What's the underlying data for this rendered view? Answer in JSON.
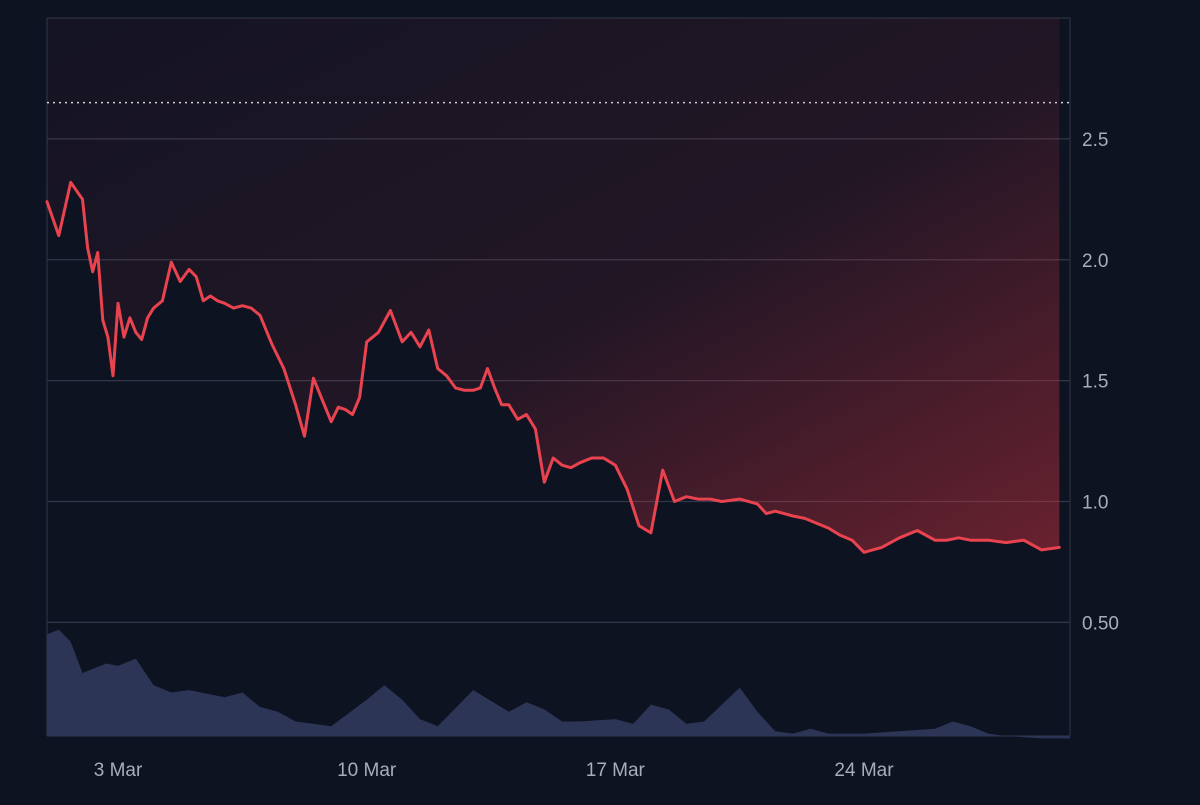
{
  "chart_data": {
    "type": "line",
    "x_ticks": [
      "3 Mar",
      "10 Mar",
      "17 Mar",
      "24 Mar"
    ],
    "y_ticks": [
      "0.50",
      "1.0",
      "1.5",
      "2.0",
      "2.5"
    ],
    "xlim": [
      "1 Mar",
      "29 Mar"
    ],
    "ylim": [
      0.03,
      3.0
    ],
    "grid": true,
    "reference_line": {
      "value": 2.65,
      "style": "dotted"
    },
    "colors": {
      "background": "#0e1322",
      "price_line": "#e8434f",
      "area_fill_top": "#d8333f",
      "volume_fill": "#2c3556",
      "grid": "#313749",
      "tick_text": "#a8adb9",
      "reference_line": "#d4d7de"
    },
    "series": [
      {
        "type": "line",
        "x": [
          "1 Mar",
          "1 Mar",
          "1 Mar",
          "2 Mar",
          "2 Mar",
          "2 Mar",
          "2 Mar",
          "2 Mar",
          "2 Mar",
          "2 Mar",
          "3 Mar",
          "3 Mar",
          "3 Mar",
          "3 Mar",
          "3 Mar",
          "3 Mar",
          "4 Mar",
          "4 Mar",
          "4 Mar",
          "4 Mar",
          "5 Mar",
          "5 Mar",
          "5 Mar",
          "5 Mar",
          "5 Mar",
          "6 Mar",
          "6 Mar",
          "6 Mar",
          "6 Mar",
          "7 Mar",
          "7 Mar",
          "7 Mar",
          "8 Mar",
          "8 Mar",
          "8 Mar",
          "8 Mar",
          "9 Mar",
          "9 Mar",
          "9 Mar",
          "9 Mar",
          "9 Mar",
          "10 Mar",
          "10 Mar",
          "10 Mar",
          "11 Mar",
          "11 Mar",
          "11 Mar",
          "11 Mar",
          "12 Mar",
          "12 Mar",
          "12 Mar",
          "12 Mar",
          "13 Mar",
          "13 Mar",
          "13 Mar",
          "13 Mar",
          "13 Mar",
          "14 Mar",
          "14 Mar",
          "14 Mar",
          "14 Mar",
          "15 Mar",
          "15 Mar",
          "15 Mar",
          "15 Mar",
          "16 Mar",
          "16 Mar",
          "16 Mar",
          "17 Mar",
          "17 Mar",
          "17 Mar",
          "18 Mar",
          "18 Mar",
          "18 Mar",
          "19 Mar",
          "19 Mar",
          "19 Mar",
          "20 Mar",
          "20 Mar",
          "21 Mar",
          "21 Mar",
          "21 Mar",
          "21 Mar",
          "22 Mar",
          "22 Mar",
          "22 Mar",
          "23 Mar",
          "23 Mar",
          "23 Mar",
          "24 Mar",
          "24 Mar",
          "25 Mar",
          "25 Mar",
          "26 Mar",
          "26 Mar",
          "26 Mar",
          "27 Mar",
          "27 Mar",
          "28 Mar",
          "28 Mar",
          "29 Mar",
          "29 Mar"
        ],
        "values": [
          2.24,
          2.1,
          2.32,
          2.25,
          2.05,
          1.95,
          2.03,
          1.75,
          1.68,
          1.52,
          1.82,
          1.68,
          1.76,
          1.7,
          1.67,
          1.76,
          1.8,
          1.83,
          1.99,
          1.91,
          1.96,
          1.93,
          1.83,
          1.85,
          1.83,
          1.82,
          1.8,
          1.81,
          1.8,
          1.77,
          1.65,
          1.55,
          1.4,
          1.27,
          1.51,
          1.42,
          1.33,
          1.39,
          1.38,
          1.36,
          1.43,
          1.66,
          1.7,
          1.79,
          1.66,
          1.7,
          1.64,
          1.71,
          1.55,
          1.52,
          1.47,
          1.46,
          1.46,
          1.47,
          1.55,
          1.47,
          1.4,
          1.4,
          1.34,
          1.36,
          1.3,
          1.08,
          1.18,
          1.15,
          1.14,
          1.16,
          1.18,
          1.18,
          1.15,
          1.05,
          0.9,
          0.87,
          1.13,
          1.0,
          1.02,
          1.01,
          1.01,
          1.0,
          1.01,
          0.99,
          0.95,
          0.96,
          0.95,
          0.94,
          0.93,
          0.91,
          0.89,
          0.86,
          0.84,
          0.79,
          0.81,
          0.85,
          0.88,
          0.84,
          0.84,
          0.85,
          0.84,
          0.84,
          0.83,
          0.84,
          0.8,
          0.81
        ]
      },
      {
        "type": "area",
        "x": [
          "1 Mar",
          "1 Mar",
          "1 Mar",
          "2 Mar",
          "2 Mar",
          "2 Mar",
          "3 Mar",
          "3 Mar",
          "4 Mar",
          "4 Mar",
          "5 Mar",
          "6 Mar",
          "6 Mar",
          "7 Mar",
          "7 Mar",
          "8 Mar",
          "9 Mar",
          "10 Mar",
          "10 Mar",
          "11 Mar",
          "11 Mar",
          "12 Mar",
          "13 Mar",
          "14 Mar",
          "14 Mar",
          "15 Mar",
          "15 Mar",
          "16 Mar",
          "17 Mar",
          "17 Mar",
          "18 Mar",
          "18 Mar",
          "19 Mar",
          "19 Mar",
          "20 Mar",
          "20 Mar",
          "21 Mar",
          "21 Mar",
          "22 Mar",
          "22 Mar",
          "23 Mar",
          "24 Mar",
          "25 Mar",
          "26 Mar",
          "26 Mar",
          "27 Mar",
          "27 Mar",
          "28 Mar",
          "29 Mar"
        ],
        "values": [
          0.45,
          0.47,
          0.42,
          0.29,
          0.31,
          0.33,
          0.32,
          0.35,
          0.24,
          0.21,
          0.22,
          0.19,
          0.21,
          0.15,
          0.13,
          0.09,
          0.07,
          0.18,
          0.24,
          0.18,
          0.1,
          0.07,
          0.22,
          0.13,
          0.17,
          0.14,
          0.09,
          0.09,
          0.1,
          0.08,
          0.16,
          0.14,
          0.08,
          0.09,
          0.16,
          0.23,
          0.13,
          0.05,
          0.04,
          0.06,
          0.04,
          0.04,
          0.05,
          0.06,
          0.09,
          0.07,
          0.04,
          0.03,
          0.02
        ]
      }
    ]
  }
}
